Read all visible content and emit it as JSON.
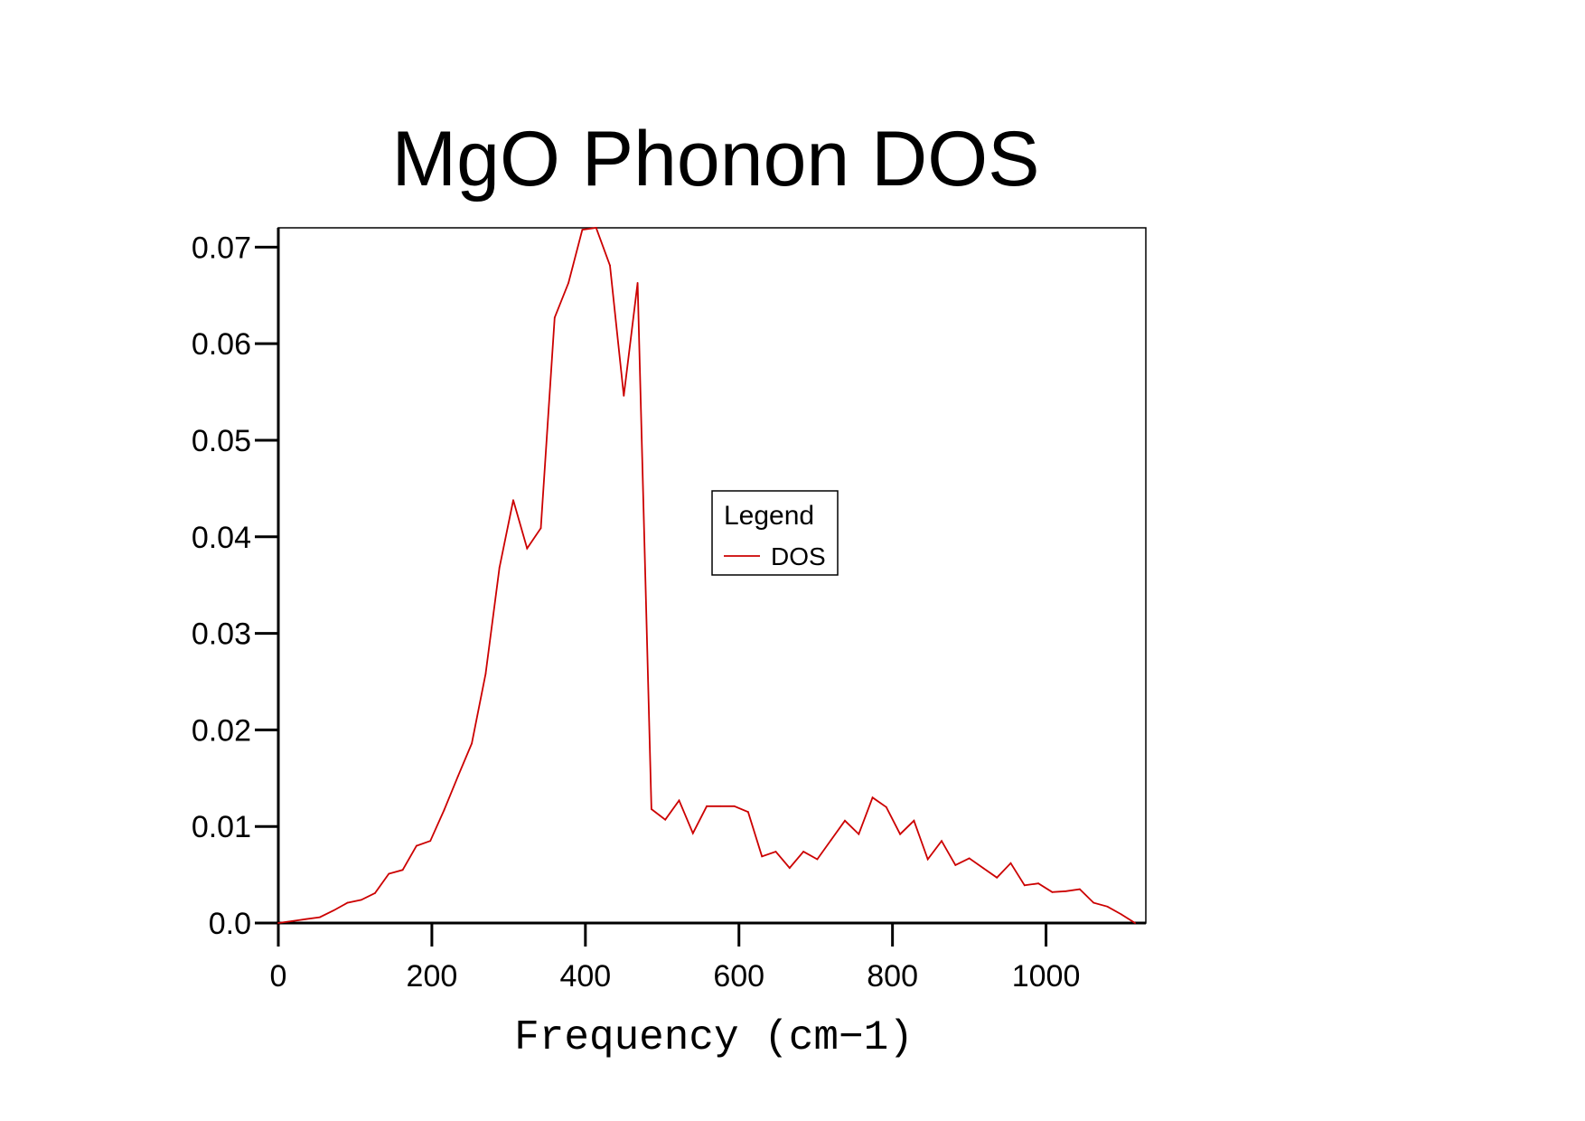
{
  "chart_data": {
    "type": "line",
    "title": "MgO Phonon DOS",
    "xlabel": "Frequency (cm−1)",
    "ylabel": "",
    "xlim": [
      0,
      1130
    ],
    "ylim": [
      0,
      0.072
    ],
    "grid": false,
    "x_ticks": [
      0,
      200,
      400,
      600,
      800,
      1000
    ],
    "x_tick_labels": [
      "0",
      "200",
      "400",
      "600",
      "800",
      "1000"
    ],
    "y_ticks": [
      0,
      0.01,
      0.02,
      0.03,
      0.04,
      0.05,
      0.06,
      0.07
    ],
    "y_tick_labels": [
      "0.0",
      "0.01",
      "0.02",
      "0.03",
      "0.04",
      "0.05",
      "0.06",
      "0.07"
    ],
    "legend": {
      "title": "Legend",
      "placement": "center-right",
      "entries": [
        {
          "label": "DOS",
          "color": "#cc0000"
        }
      ]
    },
    "series": [
      {
        "name": "DOS",
        "color": "#cc0000",
        "x": [
          0,
          18,
          36,
          54,
          72,
          90,
          108,
          126,
          144,
          162,
          180,
          198,
          216,
          234,
          252,
          270,
          288,
          306,
          324,
          342,
          360,
          378,
          396,
          414,
          432,
          450,
          468,
          486,
          504,
          522,
          540,
          558,
          576,
          594,
          612,
          630,
          648,
          666,
          684,
          702,
          720,
          738,
          756,
          774,
          792,
          810,
          828,
          846,
          864,
          882,
          900,
          918,
          936,
          954,
          972,
          990,
          1008,
          1026,
          1044,
          1062,
          1080,
          1098,
          1116
        ],
        "y": [
          0.0,
          0.0002,
          0.0004,
          0.0006,
          0.0013,
          0.0021,
          0.0024,
          0.0031,
          0.0051,
          0.0055,
          0.008,
          0.0085,
          0.0117,
          0.0152,
          0.0186,
          0.0258,
          0.0368,
          0.0438,
          0.0388,
          0.0409,
          0.0627,
          0.0663,
          0.0718,
          0.072,
          0.0681,
          0.0546,
          0.0663,
          0.0118,
          0.0107,
          0.0127,
          0.0093,
          0.0121,
          0.0121,
          0.0121,
          0.0115,
          0.0069,
          0.0074,
          0.0057,
          0.0074,
          0.0066,
          0.0086,
          0.0106,
          0.0092,
          0.013,
          0.012,
          0.0092,
          0.0106,
          0.0066,
          0.0085,
          0.006,
          0.0067,
          0.0057,
          0.0047,
          0.0062,
          0.0039,
          0.0041,
          0.0032,
          0.0033,
          0.0035,
          0.0021,
          0.0017,
          0.0009,
          0.0
        ]
      }
    ]
  }
}
